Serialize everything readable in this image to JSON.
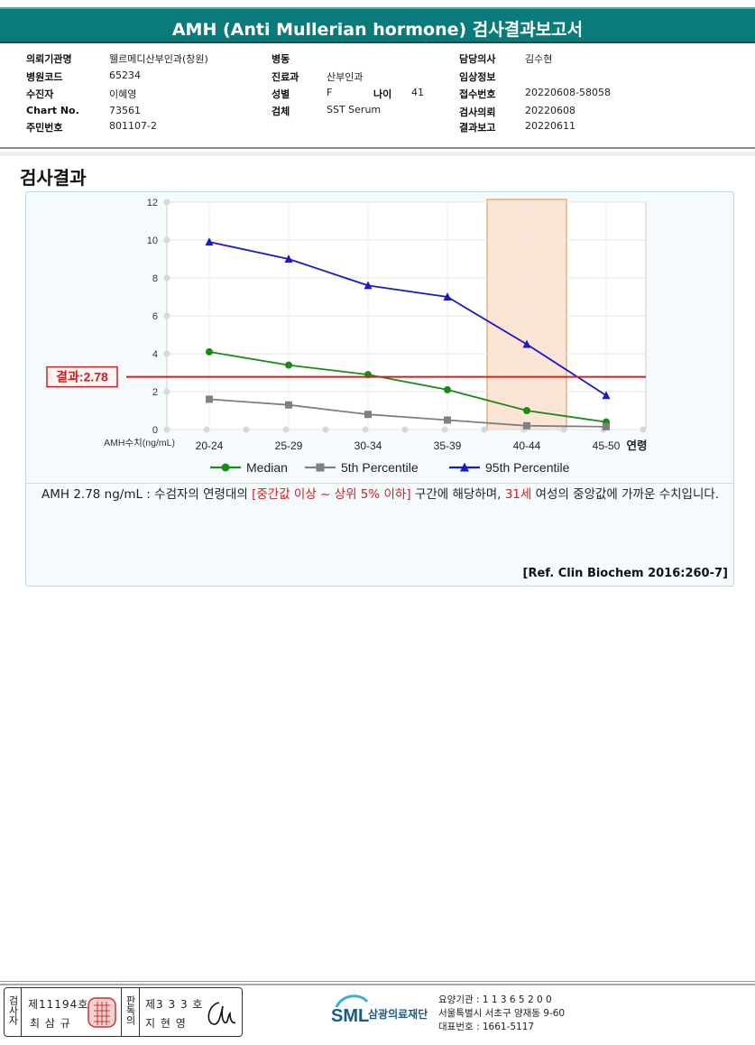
{
  "title": "AMH (Anti Mullerian hormone) 검사결과보고서",
  "info": {
    "col1": [
      {
        "label": "의뢰기관명",
        "value": "웰르메디산부인과(창원)"
      },
      {
        "label": "병원코드",
        "value": "65234"
      },
      {
        "label": "수진자",
        "value": "이혜영"
      },
      {
        "label": "Chart No.",
        "value": "73561"
      },
      {
        "label": "주민번호",
        "value": "801107-2"
      }
    ],
    "col2": [
      {
        "label": "병동",
        "value": ""
      },
      {
        "label": "진료과",
        "value": "산부인과"
      },
      {
        "label": "성별",
        "value": "F"
      },
      {
        "label": "검체",
        "value": "SST Serum"
      }
    ],
    "age": {
      "label": "나이",
      "value": "41"
    },
    "col3": [
      {
        "label": "담당의사",
        "value": "김수현"
      },
      {
        "label": "임상정보",
        "value": ""
      },
      {
        "label": "접수번호",
        "value": "20220608-58058"
      },
      {
        "label": "검사의뢰",
        "value": "20220608"
      },
      {
        "label": "결과보고",
        "value": "20220611"
      }
    ]
  },
  "section_title": "검사결과",
  "chart_data": {
    "type": "line",
    "categories": [
      "20-24",
      "25-29",
      "30-34",
      "35-39",
      "40-44",
      "45-50"
    ],
    "xlabel": "연령",
    "ylabel": "AMH수치(ng/mL)",
    "ylim": [
      0,
      12
    ],
    "yticks": [
      0,
      2,
      4,
      6,
      8,
      10,
      12
    ],
    "series": [
      {
        "name": "Median",
        "color": "#1a8a1a",
        "marker": "circle",
        "values": [
          4.1,
          3.4,
          2.9,
          2.1,
          1.0,
          0.4
        ]
      },
      {
        "name": "5th Percentile",
        "color": "#808080",
        "marker": "square",
        "values": [
          1.6,
          1.3,
          0.8,
          0.5,
          0.2,
          0.15
        ]
      },
      {
        "name": "95th Percentile",
        "color": "#1a1ac8",
        "marker": "triangle",
        "values": [
          9.9,
          9.0,
          7.6,
          7.0,
          4.5,
          1.8
        ]
      }
    ],
    "result": {
      "label": "결과:2.78",
      "value": 2.78,
      "color": "#d02020"
    },
    "highlight_category": "40-44",
    "grid": true,
    "legend": "bottom"
  },
  "comment": {
    "part1": "AMH  2.78 ng/mL : 수검자의 연령대의 ",
    "range_text": "[중간값 이상 ~ 상위 5% 이하]",
    "part2": "  구간에 해당하며, ",
    "age_text": "31세",
    "part3": " 여성의 중앙값에 가까운 수치입니다."
  },
  "reference": "[Ref. Clin Biochem 2016:260-7]",
  "footer": {
    "label_a": "검사자",
    "license_a": "제11194호",
    "name_a": "최 삼 규",
    "label_b": "판독의",
    "license_b": "제3 3 3 호",
    "name_b": "지 현 영",
    "org_name": "삼광의료재단",
    "logo_text": "SML",
    "care_code": "요양기관 : 1 1 3 6 5 2 0 0",
    "address": "서울특별시 서초구 양재동 9-60",
    "phone": "대표번호 : 1661-5117"
  }
}
